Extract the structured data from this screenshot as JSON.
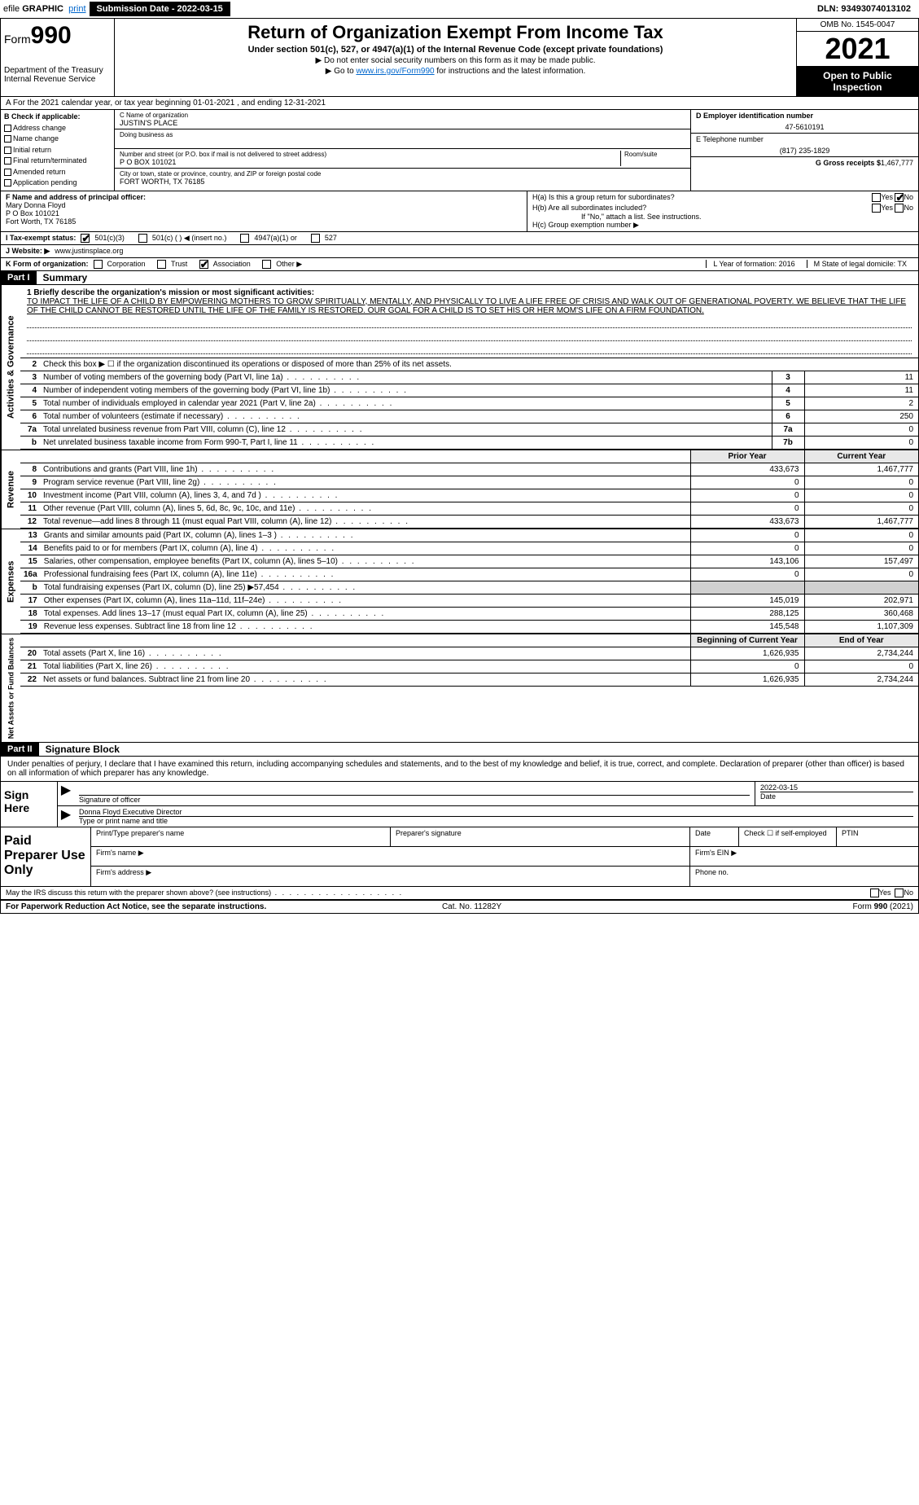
{
  "topbar": {
    "efile_prefix": "efile",
    "efile_graphic": "GRAPHIC",
    "efile_print": "print",
    "submission_label": "Submission Date - 2022-03-15",
    "dln": "DLN: 93493074013102"
  },
  "header": {
    "form_word": "Form",
    "form_num": "990",
    "dept": "Department of the Treasury",
    "irs": "Internal Revenue Service",
    "title": "Return of Organization Exempt From Income Tax",
    "subtitle": "Under section 501(c), 527, or 4947(a)(1) of the Internal Revenue Code (except private foundations)",
    "note1": "▶ Do not enter social security numbers on this form as it may be made public.",
    "note2_pre": "▶ Go to ",
    "note2_link": "www.irs.gov/Form990",
    "note2_post": " for instructions and the latest information.",
    "omb": "OMB No. 1545-0047",
    "year": "2021",
    "open": "Open to Public Inspection"
  },
  "period": {
    "text": "A For the 2021 calendar year, or tax year beginning 01-01-2021    , and ending 12-31-2021"
  },
  "colB": {
    "header": "B Check if applicable:",
    "items": [
      "Address change",
      "Name change",
      "Initial return",
      "Final return/terminated",
      "Amended return",
      "Application pending"
    ]
  },
  "colC": {
    "name_label": "C Name of organization",
    "name": "JUSTIN'S PLACE",
    "dba_label": "Doing business as",
    "addr_label": "Number and street (or P.O. box if mail is not delivered to street address)",
    "room_label": "Room/suite",
    "addr": "P O BOX 101021",
    "city_label": "City or town, state or province, country, and ZIP or foreign postal code",
    "city": "FORT WORTH, TX  76185"
  },
  "colD": {
    "ein_label": "D Employer identification number",
    "ein": "47-5610191",
    "phone_label": "E Telephone number",
    "phone": "(817) 235-1829",
    "gross_label": "G Gross receipts $",
    "gross": "1,467,777"
  },
  "principal": {
    "label": "F Name and address of principal officer:",
    "name": "Mary Donna Floyd",
    "addr1": "P O Box 101021",
    "addr2": "Fort Worth, TX  76185",
    "ha": "H(a)  Is this a group return for subordinates?",
    "ha_yes": "Yes",
    "ha_no": "No",
    "hb": "H(b)  Are all subordinates included?",
    "hb_yes": "Yes",
    "hb_no": "No",
    "hb_note": "If \"No,\" attach a list. See instructions.",
    "hc": "H(c)  Group exemption number ▶"
  },
  "status": {
    "label": "I  Tax-exempt status:",
    "o1": "501(c)(3)",
    "o2": "501(c) (    ) ◀ (insert no.)",
    "o3": "4947(a)(1) or",
    "o4": "527"
  },
  "website": {
    "label": "J Website: ▶",
    "url": "www.justinsplace.org"
  },
  "korg": {
    "label": "K Form of organization:",
    "opts": [
      "Corporation",
      "Trust",
      "Association",
      "Other ▶"
    ],
    "checked_idx": 2,
    "L": "L Year of formation: 2016",
    "M": "M State of legal domicile: TX"
  },
  "part1": {
    "tag": "Part I",
    "title": "Summary"
  },
  "mission": {
    "q": "1  Briefly describe the organization's mission or most significant activities:",
    "text": "TO IMPACT THE LIFE OF A CHILD BY EMPOWERING MOTHERS TO GROW SPIRITUALLY, MENTALLY, AND PHYSICALLY TO LIVE A LIFE FREE OF CRISIS AND WALK OUT OF GENERATIONAL POVERTY. WE BELIEVE THAT THE LIFE OF THE CHILD CANNOT BE RESTORED UNTIL THE LIFE OF THE FAMILY IS RESTORED. OUR GOAL FOR A CHILD IS TO SET HIS OR HER MOM'S LIFE ON A FIRM FOUNDATION."
  },
  "gov_rows": [
    {
      "n": "2",
      "t": "Check this box ▶ ☐  if the organization discontinued its operations or disposed of more than 25% of its net assets.",
      "box": "",
      "v": ""
    },
    {
      "n": "3",
      "t": "Number of voting members of the governing body (Part VI, line 1a)",
      "box": "3",
      "v": "11"
    },
    {
      "n": "4",
      "t": "Number of independent voting members of the governing body (Part VI, line 1b)",
      "box": "4",
      "v": "11"
    },
    {
      "n": "5",
      "t": "Total number of individuals employed in calendar year 2021 (Part V, line 2a)",
      "box": "5",
      "v": "2"
    },
    {
      "n": "6",
      "t": "Total number of volunteers (estimate if necessary)",
      "box": "6",
      "v": "250"
    },
    {
      "n": "7a",
      "t": "Total unrelated business revenue from Part VIII, column (C), line 12",
      "box": "7a",
      "v": "0"
    },
    {
      "n": "b",
      "t": "Net unrelated business taxable income from Form 990-T, Part I, line 11",
      "box": "7b",
      "v": "0"
    }
  ],
  "pc_header": {
    "prior": "Prior Year",
    "current": "Current Year"
  },
  "rev_rows": [
    {
      "n": "8",
      "t": "Contributions and grants (Part VIII, line 1h)",
      "p": "433,673",
      "c": "1,467,777"
    },
    {
      "n": "9",
      "t": "Program service revenue (Part VIII, line 2g)",
      "p": "0",
      "c": "0"
    },
    {
      "n": "10",
      "t": "Investment income (Part VIII, column (A), lines 3, 4, and 7d )",
      "p": "0",
      "c": "0"
    },
    {
      "n": "11",
      "t": "Other revenue (Part VIII, column (A), lines 5, 6d, 8c, 9c, 10c, and 11e)",
      "p": "0",
      "c": "0"
    },
    {
      "n": "12",
      "t": "Total revenue—add lines 8 through 11 (must equal Part VIII, column (A), line 12)",
      "p": "433,673",
      "c": "1,467,777"
    }
  ],
  "exp_rows": [
    {
      "n": "13",
      "t": "Grants and similar amounts paid (Part IX, column (A), lines 1–3 )",
      "p": "0",
      "c": "0"
    },
    {
      "n": "14",
      "t": "Benefits paid to or for members (Part IX, column (A), line 4)",
      "p": "0",
      "c": "0"
    },
    {
      "n": "15",
      "t": "Salaries, other compensation, employee benefits (Part IX, column (A), lines 5–10)",
      "p": "143,106",
      "c": "157,497"
    },
    {
      "n": "16a",
      "t": "Professional fundraising fees (Part IX, column (A), line 11e)",
      "p": "0",
      "c": "0"
    },
    {
      "n": "b",
      "t": "Total fundraising expenses (Part IX, column (D), line 25) ▶57,454",
      "p": "",
      "c": "",
      "shade": true
    },
    {
      "n": "17",
      "t": "Other expenses (Part IX, column (A), lines 11a–11d, 11f–24e)",
      "p": "145,019",
      "c": "202,971"
    },
    {
      "n": "18",
      "t": "Total expenses. Add lines 13–17 (must equal Part IX, column (A), line 25)",
      "p": "288,125",
      "c": "360,468"
    },
    {
      "n": "19",
      "t": "Revenue less expenses. Subtract line 18 from line 12",
      "p": "145,548",
      "c": "1,107,309"
    }
  ],
  "na_header": {
    "begin": "Beginning of Current Year",
    "end": "End of Year"
  },
  "na_rows": [
    {
      "n": "20",
      "t": "Total assets (Part X, line 16)",
      "p": "1,626,935",
      "c": "2,734,244"
    },
    {
      "n": "21",
      "t": "Total liabilities (Part X, line 26)",
      "p": "0",
      "c": "0"
    },
    {
      "n": "22",
      "t": "Net assets or fund balances. Subtract line 21 from line 20",
      "p": "1,626,935",
      "c": "2,734,244"
    }
  ],
  "side_labels": {
    "gov": "Activities & Governance",
    "rev": "Revenue",
    "exp": "Expenses",
    "na": "Net Assets or Fund Balances"
  },
  "part2": {
    "tag": "Part II",
    "title": "Signature Block"
  },
  "sig": {
    "decl": "Under penalties of perjury, I declare that I have examined this return, including accompanying schedules and statements, and to the best of my knowledge and belief, it is true, correct, and complete. Declaration of preparer (other than officer) is based on all information of which preparer has any knowledge.",
    "sign_here": "Sign Here",
    "sig_officer": "Signature of officer",
    "date": "2022-03-15",
    "date_lbl": "Date",
    "name": "Donna Floyd  Executive Director",
    "name_lbl": "Type or print name and title"
  },
  "paid": {
    "label": "Paid Preparer Use Only",
    "h1": "Print/Type preparer's name",
    "h2": "Preparer's signature",
    "h3": "Date",
    "h4": "Check ☐ if self-employed",
    "h5": "PTIN",
    "firm_name": "Firm's name    ▶",
    "firm_ein": "Firm's EIN ▶",
    "firm_addr": "Firm's address ▶",
    "phone": "Phone no."
  },
  "footer": {
    "may": "May the IRS discuss this return with the preparer shown above? (see instructions)",
    "yes": "Yes",
    "no": "No",
    "pra": "For Paperwork Reduction Act Notice, see the separate instructions.",
    "cat": "Cat. No. 11282Y",
    "form": "Form 990 (2021)"
  }
}
